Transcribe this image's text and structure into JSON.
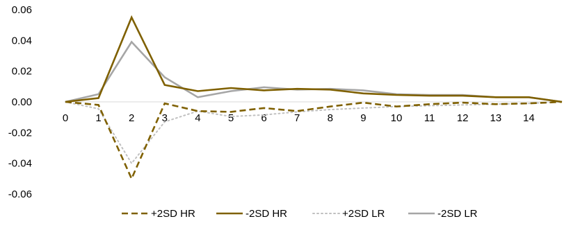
{
  "chart_data": {
    "type": "line",
    "title": "",
    "xlabel": "",
    "ylabel": "",
    "categories": [
      "0",
      "1",
      "2",
      "3",
      "4",
      "5",
      "6",
      "7",
      "8",
      "9",
      "10",
      "11",
      "12",
      "13",
      "14",
      ""
    ],
    "ylim": [
      -0.06,
      0.06
    ],
    "yticks": [
      "0.06",
      "0.04",
      "0.02",
      "0.00",
      "-0.02",
      "-0.04",
      "-0.06"
    ],
    "ytick_values": [
      0.06,
      0.04,
      0.02,
      0.0,
      -0.02,
      -0.04,
      -0.06
    ],
    "grid": false,
    "legend_position": "bottom",
    "series": [
      {
        "name": "+2SD HR",
        "color": "#7f6000",
        "dash": "dashed",
        "values": [
          0,
          -0.002,
          -0.05,
          -0.001,
          -0.006,
          -0.0065,
          -0.004,
          -0.006,
          -0.003,
          -0.0005,
          -0.003,
          -0.0015,
          -0.0005,
          -0.0015,
          -0.001,
          0
        ]
      },
      {
        "name": "-2SD HR",
        "color": "#7f6000",
        "dash": "solid",
        "values": [
          0,
          0.0025,
          0.055,
          0.011,
          0.007,
          0.009,
          0.0075,
          0.0085,
          0.008,
          0.0055,
          0.0045,
          0.004,
          0.004,
          0.003,
          0.003,
          0
        ]
      },
      {
        "name": "+2SD LR",
        "color": "#c0c0c0",
        "dash": "dotted",
        "values": [
          0,
          -0.0045,
          -0.04,
          -0.013,
          -0.006,
          -0.0095,
          -0.0085,
          -0.0065,
          -0.005,
          -0.004,
          -0.003,
          -0.0025,
          -0.002,
          -0.0015,
          -0.001,
          0
        ]
      },
      {
        "name": "-2SD LR",
        "color": "#a6a6a6",
        "dash": "solid",
        "values": [
          0,
          0.005,
          0.039,
          0.016,
          0.003,
          0.007,
          0.0095,
          0.008,
          0.0085,
          0.0075,
          0.005,
          0.0045,
          0.0045,
          0.003,
          0.003,
          0
        ]
      }
    ]
  }
}
